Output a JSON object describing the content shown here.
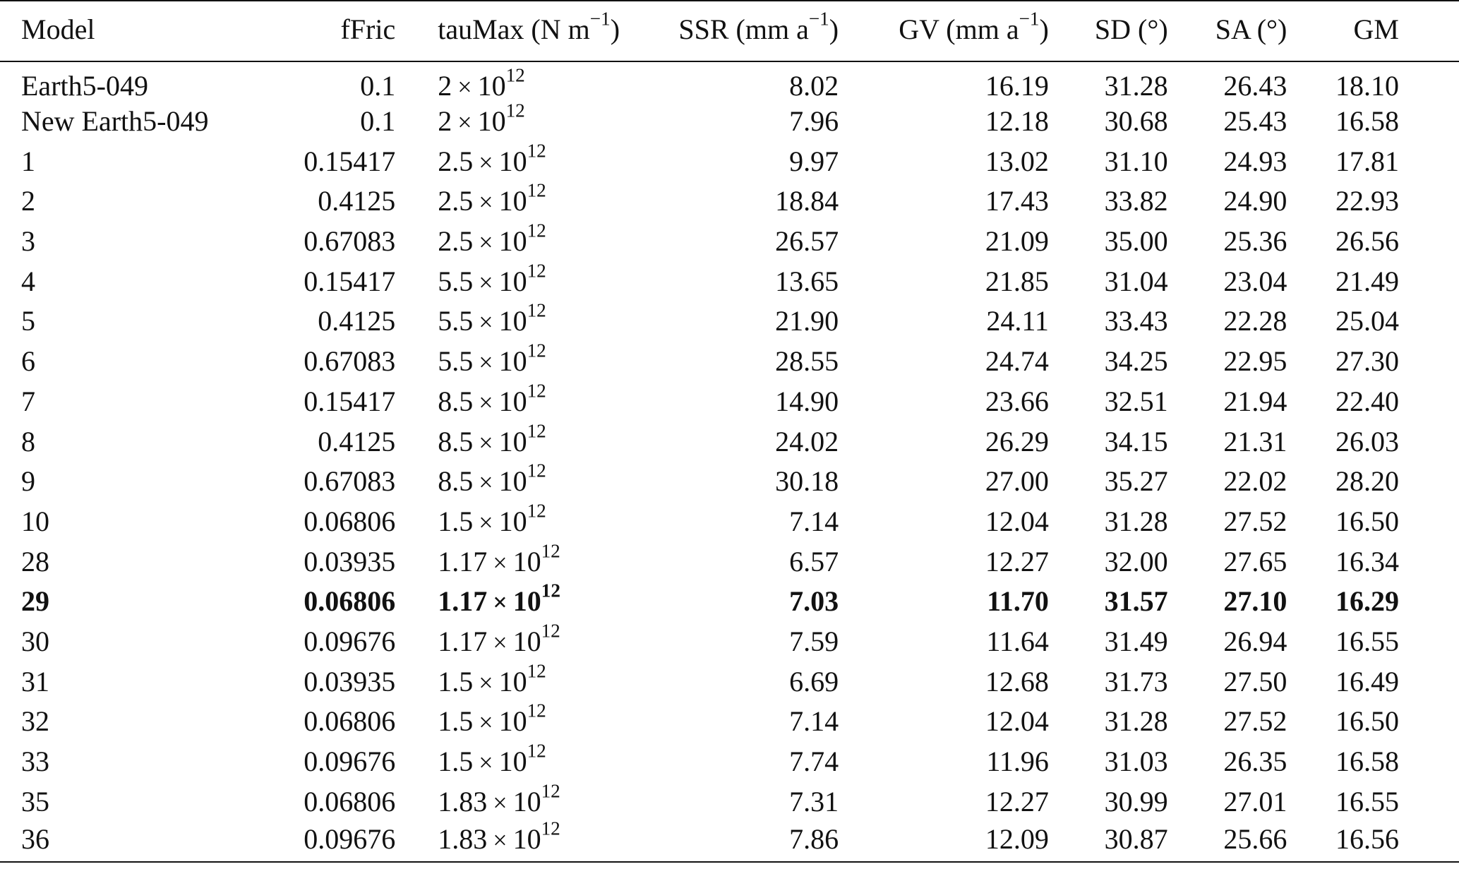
{
  "table": {
    "headers": [
      {
        "text": "Model"
      },
      {
        "text": "fFric"
      },
      {
        "text": "tauMax (N m",
        "sup": "−1",
        "tail": ")"
      },
      {
        "text": "SSR (mm a",
        "sup": "−1",
        "tail": ")"
      },
      {
        "text": "GV (mm a",
        "sup": "−1",
        "tail": ")"
      },
      {
        "text": "SD (°)"
      },
      {
        "text": "SA (°)"
      },
      {
        "text": "GM"
      }
    ],
    "rows": [
      {
        "model": "Earth5-049",
        "fFric": "0.1",
        "tau_mant": "2",
        "tau_exp": "12",
        "SSR": "8.02",
        "GV": "16.19",
        "SD": "31.28",
        "SA": "26.43",
        "GM": "18.10",
        "bold": false
      },
      {
        "model": "New Earth5-049",
        "fFric": "0.1",
        "tau_mant": "2",
        "tau_exp": "12",
        "SSR": "7.96",
        "GV": "12.18",
        "SD": "30.68",
        "SA": "25.43",
        "GM": "16.58",
        "bold": false
      },
      {
        "model": "1",
        "fFric": "0.15417",
        "tau_mant": "2.5",
        "tau_exp": "12",
        "SSR": "9.97",
        "GV": "13.02",
        "SD": "31.10",
        "SA": "24.93",
        "GM": "17.81",
        "bold": false
      },
      {
        "model": "2",
        "fFric": "0.4125",
        "tau_mant": "2.5",
        "tau_exp": "12",
        "SSR": "18.84",
        "GV": "17.43",
        "SD": "33.82",
        "SA": "24.90",
        "GM": "22.93",
        "bold": false
      },
      {
        "model": "3",
        "fFric": "0.67083",
        "tau_mant": "2.5",
        "tau_exp": "12",
        "SSR": "26.57",
        "GV": "21.09",
        "SD": "35.00",
        "SA": "25.36",
        "GM": "26.56",
        "bold": false
      },
      {
        "model": "4",
        "fFric": "0.15417",
        "tau_mant": "5.5",
        "tau_exp": "12",
        "SSR": "13.65",
        "GV": "21.85",
        "SD": "31.04",
        "SA": "23.04",
        "GM": "21.49",
        "bold": false
      },
      {
        "model": "5",
        "fFric": "0.4125",
        "tau_mant": "5.5",
        "tau_exp": "12",
        "SSR": "21.90",
        "GV": "24.11",
        "SD": "33.43",
        "SA": "22.28",
        "GM": "25.04",
        "bold": false
      },
      {
        "model": "6",
        "fFric": "0.67083",
        "tau_mant": "5.5",
        "tau_exp": "12",
        "SSR": "28.55",
        "GV": "24.74",
        "SD": "34.25",
        "SA": "22.95",
        "GM": "27.30",
        "bold": false
      },
      {
        "model": "7",
        "fFric": "0.15417",
        "tau_mant": "8.5",
        "tau_exp": "12",
        "SSR": "14.90",
        "GV": "23.66",
        "SD": "32.51",
        "SA": "21.94",
        "GM": "22.40",
        "bold": false
      },
      {
        "model": "8",
        "fFric": "0.4125",
        "tau_mant": "8.5",
        "tau_exp": "12",
        "SSR": "24.02",
        "GV": "26.29",
        "SD": "34.15",
        "SA": "21.31",
        "GM": "26.03",
        "bold": false
      },
      {
        "model": "9",
        "fFric": "0.67083",
        "tau_mant": "8.5",
        "tau_exp": "12",
        "SSR": "30.18",
        "GV": "27.00",
        "SD": "35.27",
        "SA": "22.02",
        "GM": "28.20",
        "bold": false
      },
      {
        "model": "10",
        "fFric": "0.06806",
        "tau_mant": "1.5",
        "tau_exp": "12",
        "SSR": "7.14",
        "GV": "12.04",
        "SD": "31.28",
        "SA": "27.52",
        "GM": "16.50",
        "bold": false
      },
      {
        "model": "28",
        "fFric": "0.03935",
        "tau_mant": "1.17",
        "tau_exp": "12",
        "SSR": "6.57",
        "GV": "12.27",
        "SD": "32.00",
        "SA": "27.65",
        "GM": "16.34",
        "bold": false
      },
      {
        "model": "29",
        "fFric": "0.06806",
        "tau_mant": "1.17",
        "tau_exp": "12",
        "SSR": "7.03",
        "GV": "11.70",
        "SD": "31.57",
        "SA": "27.10",
        "GM": "16.29",
        "bold": true
      },
      {
        "model": "30",
        "fFric": "0.09676",
        "tau_mant": "1.17",
        "tau_exp": "12",
        "SSR": "7.59",
        "GV": "11.64",
        "SD": "31.49",
        "SA": "26.94",
        "GM": "16.55",
        "bold": false
      },
      {
        "model": "31",
        "fFric": "0.03935",
        "tau_mant": "1.5",
        "tau_exp": "12",
        "SSR": "6.69",
        "GV": "12.68",
        "SD": "31.73",
        "SA": "27.50",
        "GM": "16.49",
        "bold": false
      },
      {
        "model": "32",
        "fFric": "0.06806",
        "tau_mant": "1.5",
        "tau_exp": "12",
        "SSR": "7.14",
        "GV": "12.04",
        "SD": "31.28",
        "SA": "27.52",
        "GM": "16.50",
        "bold": false
      },
      {
        "model": "33",
        "fFric": "0.09676",
        "tau_mant": "1.5",
        "tau_exp": "12",
        "SSR": "7.74",
        "GV": "11.96",
        "SD": "31.03",
        "SA": "26.35",
        "GM": "16.58",
        "bold": false
      },
      {
        "model": "35",
        "fFric": "0.06806",
        "tau_mant": "1.83",
        "tau_exp": "12",
        "SSR": "7.31",
        "GV": "12.27",
        "SD": "30.99",
        "SA": "27.01",
        "GM": "16.55",
        "bold": false
      },
      {
        "model": "36",
        "fFric": "0.09676",
        "tau_mant": "1.83",
        "tau_exp": "12",
        "SSR": "7.86",
        "GV": "12.09",
        "SD": "30.87",
        "SA": "25.66",
        "GM": "16.56",
        "bold": false
      }
    ],
    "multiply_sign": "×",
    "tau_base": "10"
  }
}
